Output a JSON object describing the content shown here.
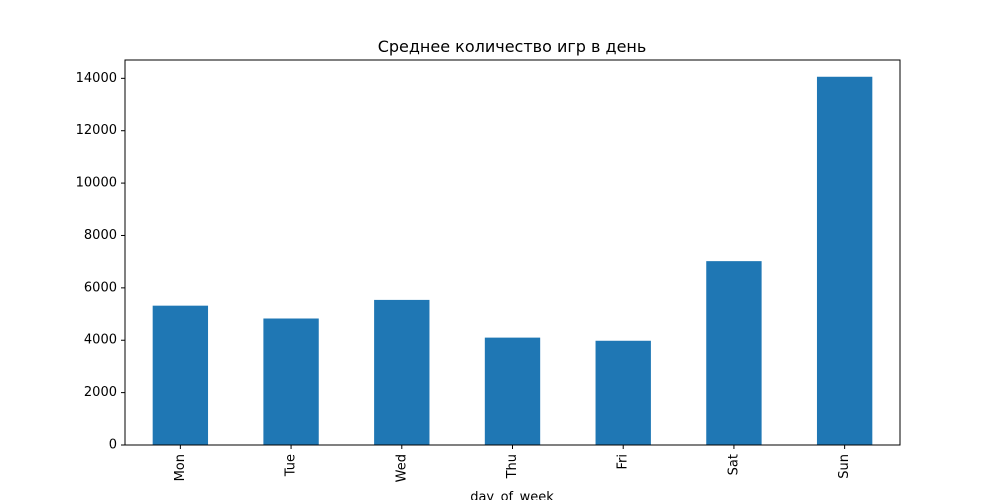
{
  "chart_data": {
    "type": "bar",
    "title": "Среднее количество игр в день",
    "xlabel": "day_of_week",
    "ylabel": "",
    "categories": [
      "Mon",
      "Tue",
      "Wed",
      "Thu",
      "Fri",
      "Sat",
      "Sun"
    ],
    "values": [
      5320,
      4830,
      5540,
      4100,
      3980,
      7020,
      14060
    ],
    "ylim": [
      0,
      14700
    ],
    "yticks": [
      0,
      2000,
      4000,
      6000,
      8000,
      10000,
      12000,
      14000
    ],
    "ytick_labels": [
      "0",
      "2000",
      "4000",
      "6000",
      "8000",
      "10000",
      "12000",
      "14000"
    ],
    "bar_color": "#1f77b4",
    "grid": false,
    "legend": "none",
    "xtick_rotation": "vertical"
  }
}
